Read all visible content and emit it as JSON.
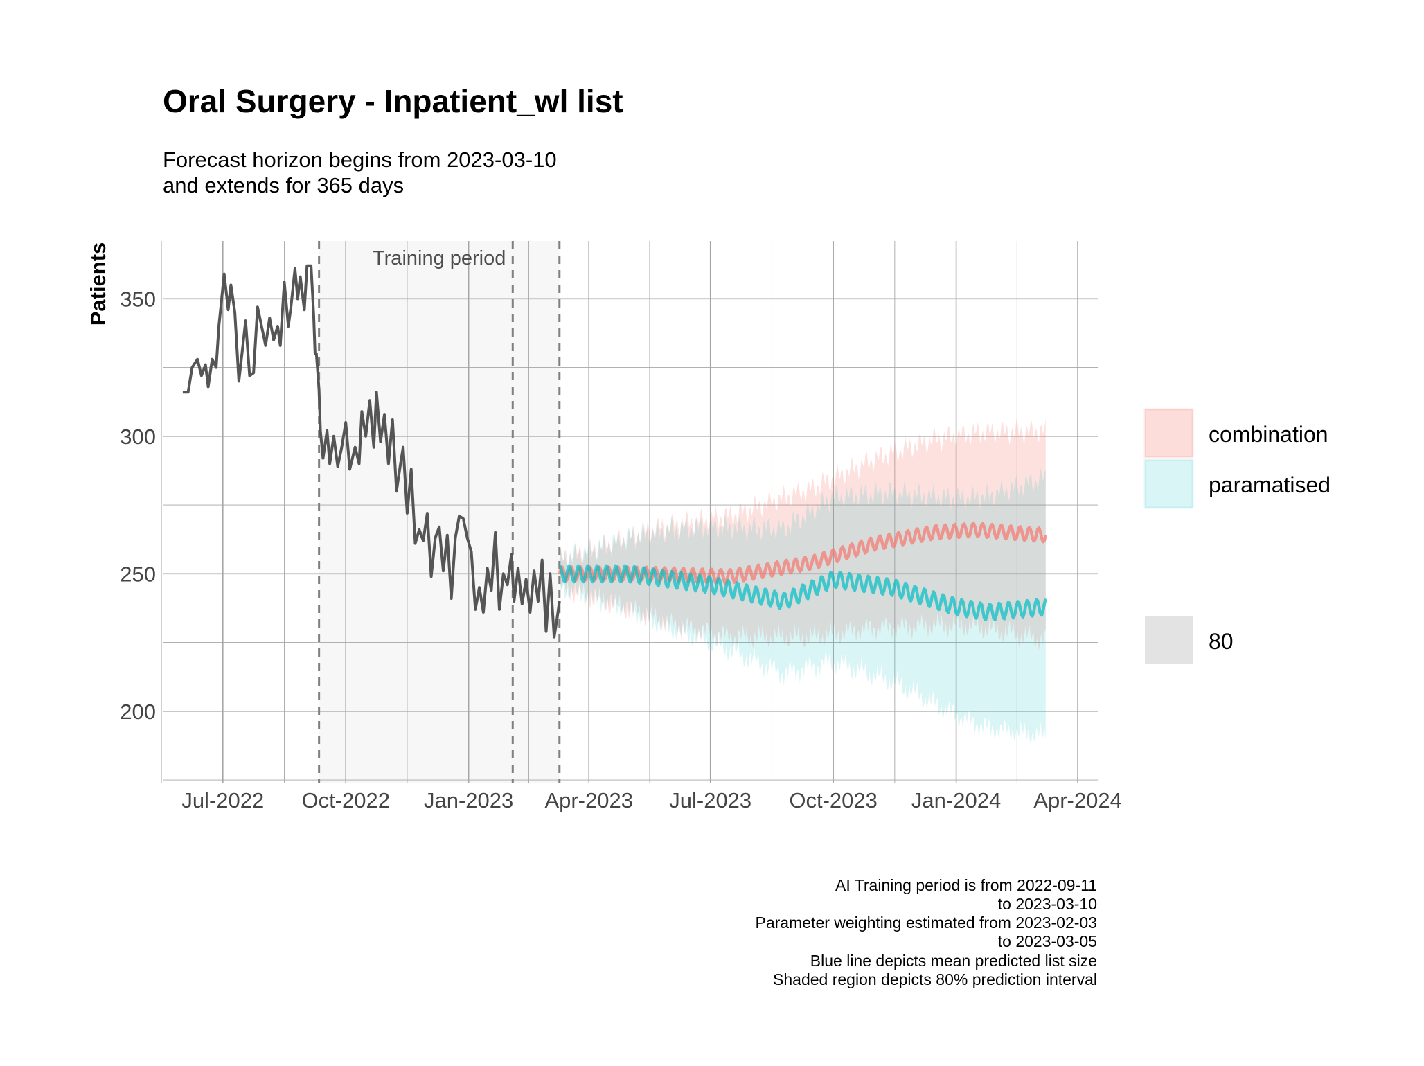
{
  "chart_data": {
    "type": "line",
    "title": "Oral Surgery - Inpatient_wl list",
    "subtitle_lines": [
      "Forecast horizon begins from 2023-03-10",
      "and extends for 365 days"
    ],
    "xlabel": "",
    "ylabel": "Patients",
    "x_tick_labels": [
      "Jul-2022",
      "Oct-2022",
      "Jan-2023",
      "Apr-2023",
      "Jul-2023",
      "Oct-2023",
      "Jan-2024",
      "Apr-2024"
    ],
    "x_tick_dates": [
      "2022-07-01",
      "2022-10-01",
      "2023-01-01",
      "2023-04-01",
      "2023-07-01",
      "2023-10-01",
      "2024-01-01",
      "2024-04-01"
    ],
    "y_ticks": [
      200,
      250,
      300,
      350
    ],
    "xlim": [
      "2022-05-17",
      "2024-04-16"
    ],
    "ylim": [
      174,
      371
    ],
    "grid": true,
    "legend_position": "right",
    "training_period": {
      "start": "2022-09-11",
      "end": "2023-03-10",
      "label": "Training period"
    },
    "vlines": [
      "2022-09-11",
      "2023-02-03",
      "2023-03-10"
    ],
    "observed": {
      "color": "#555555",
      "points": [
        [
          "2022-06-01",
          316
        ],
        [
          "2022-06-05",
          316
        ],
        [
          "2022-06-08",
          325
        ],
        [
          "2022-06-12",
          328
        ],
        [
          "2022-06-15",
          322
        ],
        [
          "2022-06-18",
          326
        ],
        [
          "2022-06-20",
          318
        ],
        [
          "2022-06-23",
          328
        ],
        [
          "2022-06-26",
          325
        ],
        [
          "2022-06-28",
          340
        ],
        [
          "2022-07-02",
          359
        ],
        [
          "2022-07-05",
          346
        ],
        [
          "2022-07-07",
          355
        ],
        [
          "2022-07-10",
          345
        ],
        [
          "2022-07-13",
          320
        ],
        [
          "2022-07-16",
          333
        ],
        [
          "2022-07-18",
          342
        ],
        [
          "2022-07-21",
          322
        ],
        [
          "2022-07-24",
          323
        ],
        [
          "2022-07-27",
          347
        ],
        [
          "2022-07-30",
          340
        ],
        [
          "2022-08-02",
          333
        ],
        [
          "2022-08-05",
          343
        ],
        [
          "2022-08-08",
          335
        ],
        [
          "2022-08-11",
          340
        ],
        [
          "2022-08-13",
          333
        ],
        [
          "2022-08-16",
          356
        ],
        [
          "2022-08-19",
          340
        ],
        [
          "2022-08-21",
          347
        ],
        [
          "2022-08-24",
          361
        ],
        [
          "2022-08-26",
          350
        ],
        [
          "2022-08-28",
          358
        ],
        [
          "2022-08-31",
          346
        ],
        [
          "2022-09-02",
          362
        ],
        [
          "2022-09-05",
          362
        ],
        [
          "2022-09-07",
          344
        ],
        [
          "2022-09-08",
          330
        ],
        [
          "2022-09-09",
          330
        ],
        [
          "2022-09-11",
          317
        ],
        [
          "2022-09-12",
          302
        ],
        [
          "2022-09-14",
          292
        ],
        [
          "2022-09-17",
          302
        ],
        [
          "2022-09-19",
          290
        ],
        [
          "2022-09-22",
          300
        ],
        [
          "2022-09-25",
          289
        ],
        [
          "2022-09-28",
          296
        ],
        [
          "2022-10-01",
          305
        ],
        [
          "2022-10-04",
          288
        ],
        [
          "2022-10-08",
          296
        ],
        [
          "2022-10-11",
          290
        ],
        [
          "2022-10-13",
          309
        ],
        [
          "2022-10-16",
          300
        ],
        [
          "2022-10-19",
          313
        ],
        [
          "2022-10-22",
          296
        ],
        [
          "2022-10-24",
          316
        ],
        [
          "2022-10-27",
          298
        ],
        [
          "2022-10-30",
          308
        ],
        [
          "2022-11-02",
          290
        ],
        [
          "2022-11-05",
          306
        ],
        [
          "2022-11-08",
          280
        ],
        [
          "2022-11-11",
          290
        ],
        [
          "2022-11-13",
          296
        ],
        [
          "2022-11-16",
          272
        ],
        [
          "2022-11-19",
          288
        ],
        [
          "2022-11-22",
          261
        ],
        [
          "2022-11-25",
          266
        ],
        [
          "2022-11-28",
          262
        ],
        [
          "2022-12-01",
          272
        ],
        [
          "2022-12-04",
          249
        ],
        [
          "2022-12-07",
          263
        ],
        [
          "2022-12-10",
          267
        ],
        [
          "2022-12-13",
          251
        ],
        [
          "2022-12-16",
          264
        ],
        [
          "2022-12-19",
          241
        ],
        [
          "2022-12-22",
          263
        ],
        [
          "2022-12-25",
          271
        ],
        [
          "2022-12-28",
          270
        ],
        [
          "2022-12-31",
          263
        ],
        [
          "2023-01-03",
          258
        ],
        [
          "2023-01-06",
          237
        ],
        [
          "2023-01-09",
          245
        ],
        [
          "2023-01-12",
          236
        ],
        [
          "2023-01-15",
          252
        ],
        [
          "2023-01-18",
          244
        ],
        [
          "2023-01-21",
          265
        ],
        [
          "2023-01-24",
          237
        ],
        [
          "2023-01-27",
          250
        ],
        [
          "2023-01-30",
          246
        ],
        [
          "2023-02-02",
          257
        ],
        [
          "2023-02-04",
          240
        ],
        [
          "2023-02-07",
          252
        ],
        [
          "2023-02-10",
          239
        ],
        [
          "2023-02-13",
          248
        ],
        [
          "2023-02-16",
          236
        ],
        [
          "2023-02-19",
          251
        ],
        [
          "2023-02-22",
          240
        ],
        [
          "2023-02-25",
          255
        ],
        [
          "2023-02-28",
          229
        ],
        [
          "2023-03-03",
          250
        ],
        [
          "2023-03-06",
          227
        ],
        [
          "2023-03-08",
          233
        ],
        [
          "2023-03-10",
          240
        ]
      ]
    },
    "forecast_start": "2023-03-10",
    "forecast_end": "2024-03-08",
    "series": [
      {
        "name": "combination",
        "color": "#F8766D",
        "fill": "#F8766D",
        "mean_knots": [
          [
            "2023-03-10",
            250
          ],
          [
            "2023-05-15",
            250
          ],
          [
            "2023-07-15",
            249
          ],
          [
            "2023-09-15",
            254
          ],
          [
            "2023-11-01",
            261
          ],
          [
            "2023-12-15",
            265
          ],
          [
            "2024-01-15",
            266
          ],
          [
            "2024-03-08",
            264
          ]
        ],
        "mean_wiggle": 2.5,
        "band_halfwidth_knots": [
          [
            "2023-03-10",
            5
          ],
          [
            "2023-06-01",
            18
          ],
          [
            "2023-09-01",
            26
          ],
          [
            "2023-12-01",
            33
          ],
          [
            "2024-03-08",
            38
          ]
        ],
        "band_wiggle": 5
      },
      {
        "name": "paramatised",
        "color": "#00BFC4",
        "fill": "#00BFC4",
        "mean_knots": [
          [
            "2023-03-10",
            250
          ],
          [
            "2023-05-01",
            250
          ],
          [
            "2023-07-01",
            246
          ],
          [
            "2023-08-25",
            240
          ],
          [
            "2023-10-01",
            248
          ],
          [
            "2023-11-15",
            245
          ],
          [
            "2024-01-01",
            238
          ],
          [
            "2024-01-25",
            236
          ],
          [
            "2024-03-08",
            238
          ]
        ],
        "mean_wiggle": 3,
        "band_halfwidth_knots": [
          [
            "2023-03-10",
            5
          ],
          [
            "2023-06-01",
            18
          ],
          [
            "2023-09-01",
            27
          ],
          [
            "2023-12-01",
            36
          ],
          [
            "2024-03-08",
            47
          ]
        ],
        "band_wiggle": 5
      }
    ],
    "legend": {
      "entries": [
        {
          "label": "combination",
          "color": "#F8766D"
        },
        {
          "label": "paramatised",
          "color": "#00BFC4"
        }
      ],
      "interval_label": "80"
    },
    "caption_lines": [
      "AI Training period is from 2022-09-11",
      "to 2023-03-10",
      "Parameter weighting estimated from 2023-02-03",
      "to 2023-03-05",
      "Blue line depicts mean predicted list size",
      "Shaded region depicts 80% prediction interval"
    ]
  }
}
